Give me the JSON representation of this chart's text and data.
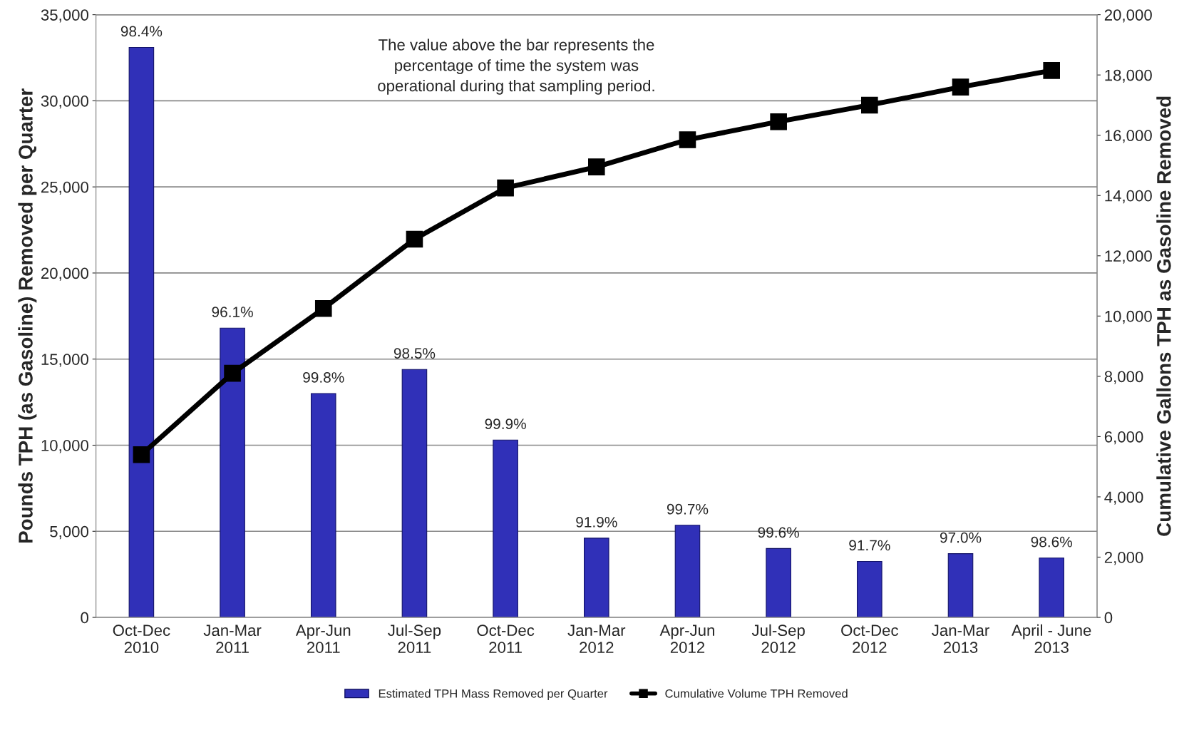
{
  "chart_data": {
    "type": "bar",
    "ylabel": "Pounds TPH (as Gasoline) Removed per Quarter",
    "y2label": "Cumulative Gallons TPH as Gasoline Removed",
    "categories": [
      "Oct-Dec\n2010",
      "Jan-Mar\n2011",
      "Apr-Jun\n2011",
      "Jul-Sep\n2011",
      "Oct-Dec\n2011",
      "Jan-Mar\n2012",
      "Apr-Jun\n2012",
      "Jul-Sep\n2012",
      "Oct-Dec\n2012",
      "Jan-Mar\n2013",
      "April - June\n2013"
    ],
    "series": [
      {
        "name": "Estimated TPH Mass Removed per Quarter",
        "color": "#3030b8",
        "values": [
          33100,
          16800,
          13000,
          14400,
          10300,
          4600,
          5350,
          4000,
          3250,
          3700,
          3450
        ]
      },
      {
        "name": "Cumulative Volume TPH Removed",
        "type": "line",
        "axis": "y2",
        "color": "#000000",
        "marker": "square",
        "values": [
          5400,
          8100,
          10250,
          12550,
          14250,
          14950,
          15850,
          16450,
          17000,
          17600,
          18150
        ]
      }
    ],
    "value_labels": [
      "98.4%",
      "96.1%",
      "99.8%",
      "98.5%",
      "99.9%",
      "91.9%",
      "99.7%",
      "99.6%",
      "91.7%",
      "97.0%",
      "98.6%"
    ],
    "annotations": [
      "The value above the bar represents the\npercentage of time the system was\noperational during that sampling period."
    ],
    "ylim": [
      0,
      35000
    ],
    "yticks": [
      {
        "value": 0,
        "label": "0"
      },
      {
        "value": 5000,
        "label": "5,000"
      },
      {
        "value": 10000,
        "label": "10,000"
      },
      {
        "value": 15000,
        "label": "15,000"
      },
      {
        "value": 20000,
        "label": "20,000"
      },
      {
        "value": 25000,
        "label": "25,000"
      },
      {
        "value": 30000,
        "label": "30,000"
      },
      {
        "value": 35000,
        "label": "35,000"
      }
    ],
    "y2lim": [
      0,
      20000
    ],
    "y2ticks": [
      {
        "value": 0,
        "label": "0"
      },
      {
        "value": 2000,
        "label": "2,000"
      },
      {
        "value": 4000,
        "label": "4,000"
      },
      {
        "value": 6000,
        "label": "6,000"
      },
      {
        "value": 8000,
        "label": "8,000"
      },
      {
        "value": 10000,
        "label": "10,000"
      },
      {
        "value": 12000,
        "label": "12,000"
      },
      {
        "value": 14000,
        "label": "14,000"
      },
      {
        "value": 16000,
        "label": "16,000"
      },
      {
        "value": 18000,
        "label": "18,000"
      },
      {
        "value": 20000,
        "label": "20,000"
      }
    ],
    "grid": "y",
    "legend": "bottom"
  }
}
